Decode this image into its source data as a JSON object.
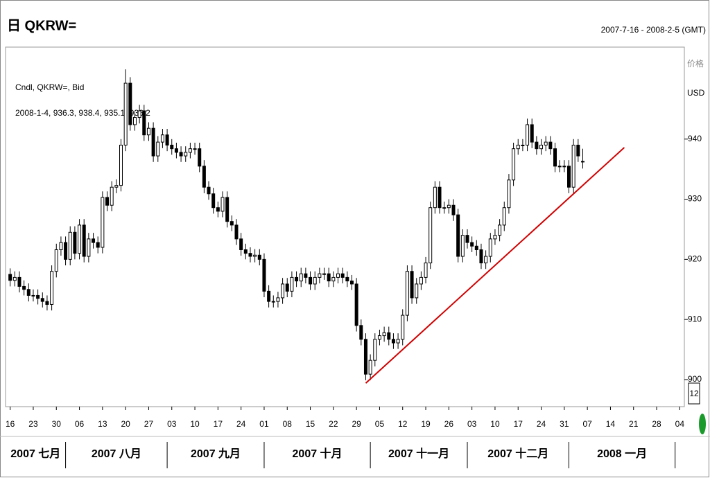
{
  "chart_data": {
    "type": "candlestick",
    "title": "日 QKRW=",
    "date_range": "2007-7-16 - 2008-2-5 (GMT)",
    "legend_name": "Cndl, QKRW=, Bid",
    "legend_info": "2008-1-4, 936.3, 938.4, 935.1, 936.2",
    "y_axis_title": "价格",
    "y_axis_unit": "USD",
    "price_marker": "12",
    "x": [
      "2007-07-16",
      "2007-07-17",
      "2007-07-18",
      "2007-07-19",
      "2007-07-20",
      "2007-07-23",
      "2007-07-24",
      "2007-07-25",
      "2007-07-26",
      "2007-07-27",
      "2007-07-30",
      "2007-07-31",
      "2007-08-01",
      "2007-08-02",
      "2007-08-03",
      "2007-08-06",
      "2007-08-07",
      "2007-08-08",
      "2007-08-09",
      "2007-08-10",
      "2007-08-13",
      "2007-08-14",
      "2007-08-15",
      "2007-08-16",
      "2007-08-17",
      "2007-08-20",
      "2007-08-21",
      "2007-08-22",
      "2007-08-23",
      "2007-08-24",
      "2007-08-27",
      "2007-08-28",
      "2007-08-29",
      "2007-08-30",
      "2007-08-31",
      "2007-09-03",
      "2007-09-04",
      "2007-09-05",
      "2007-09-06",
      "2007-09-07",
      "2007-09-10",
      "2007-09-11",
      "2007-09-12",
      "2007-09-13",
      "2007-09-14",
      "2007-09-17",
      "2007-09-18",
      "2007-09-19",
      "2007-09-20",
      "2007-09-21",
      "2007-09-24",
      "2007-09-25",
      "2007-09-26",
      "2007-09-27",
      "2007-09-28",
      "2007-10-01",
      "2007-10-02",
      "2007-10-03",
      "2007-10-04",
      "2007-10-05",
      "2007-10-08",
      "2007-10-09",
      "2007-10-10",
      "2007-10-11",
      "2007-10-12",
      "2007-10-15",
      "2007-10-16",
      "2007-10-17",
      "2007-10-18",
      "2007-10-19",
      "2007-10-22",
      "2007-10-23",
      "2007-10-24",
      "2007-10-25",
      "2007-10-26",
      "2007-10-29",
      "2007-10-30",
      "2007-10-31",
      "2007-11-01",
      "2007-11-02",
      "2007-11-05",
      "2007-11-06",
      "2007-11-07",
      "2007-11-08",
      "2007-11-09",
      "2007-11-12",
      "2007-11-13",
      "2007-11-14",
      "2007-11-15",
      "2007-11-16",
      "2007-11-19",
      "2007-11-20",
      "2007-11-21",
      "2007-11-22",
      "2007-11-23",
      "2007-11-26",
      "2007-11-27",
      "2007-11-28",
      "2007-11-29",
      "2007-11-30",
      "2007-12-03",
      "2007-12-04",
      "2007-12-05",
      "2007-12-06",
      "2007-12-07",
      "2007-12-10",
      "2007-12-11",
      "2007-12-12",
      "2007-12-13",
      "2007-12-14",
      "2007-12-17",
      "2007-12-18",
      "2007-12-19",
      "2007-12-20",
      "2007-12-21",
      "2007-12-24",
      "2007-12-25",
      "2007-12-26",
      "2007-12-27",
      "2007-12-28",
      "2007-12-31",
      "2008-01-01",
      "2008-01-02",
      "2008-01-03",
      "2008-01-04"
    ],
    "open": [
      917.5,
      916.5,
      917,
      915.5,
      915,
      914,
      914,
      913.5,
      913,
      912.5,
      918,
      921.6,
      922.8,
      920,
      924.5,
      921,
      925.7,
      920.5,
      923.4,
      922.8,
      922,
      930.3,
      929,
      932,
      932.3,
      939,
      949.3,
      942.4,
      943.6,
      944.7,
      940.7,
      941.8,
      937.2,
      939.5,
      940.7,
      939,
      938.4,
      937.8,
      937.2,
      937.8,
      938.4,
      938.4,
      935.5,
      932,
      930.9,
      928.6,
      928,
      930.3,
      926.3,
      925.7,
      923.4,
      921.6,
      921,
      920.5,
      920.7,
      920,
      914.7,
      913,
      913,
      913.6,
      915.9,
      914.7,
      917,
      916.4,
      917.6,
      917,
      915.9,
      917,
      917.6,
      917.6,
      916.4,
      917,
      917.6,
      917,
      916.4,
      915.9,
      909,
      906.7,
      900.9,
      903.2,
      906.7,
      907.3,
      907.8,
      906.7,
      906.1,
      906.7,
      910.7,
      918,
      913.6,
      915.9,
      917,
      919.4,
      928.6,
      932,
      928.6,
      928.6,
      929,
      927.4,
      920.5,
      924,
      922.8,
      922.2,
      921.6,
      919.4,
      920.5,
      923.4,
      924,
      925.7,
      928.6,
      933.2,
      938.4,
      939,
      939,
      942.4,
      939.5,
      938.4,
      939,
      939.5,
      938.4,
      935.5,
      935.5,
      935.5,
      932,
      939,
      936.3
    ],
    "high": [
      918.5,
      918,
      918,
      916.5,
      916,
      915,
      915,
      914.5,
      914,
      919,
      922.6,
      923.8,
      923.8,
      925.5,
      925.5,
      926.7,
      926.7,
      924.4,
      924.4,
      923.8,
      931.3,
      931.3,
      933,
      933.3,
      940,
      951.6,
      950.3,
      944.6,
      945.7,
      945.7,
      942.8,
      942.8,
      940.5,
      941.7,
      941.7,
      940,
      939.4,
      938.8,
      938.8,
      939.4,
      939.4,
      939.4,
      936.5,
      933,
      931.9,
      929.6,
      931.3,
      931.3,
      927.3,
      926.7,
      924.4,
      922.6,
      922,
      921.7,
      921.7,
      921,
      915.7,
      914,
      914.6,
      916.9,
      916.9,
      918,
      918,
      918.6,
      918.6,
      918,
      918,
      918.6,
      918.6,
      918.6,
      918,
      918.6,
      918.6,
      918,
      917.4,
      916.9,
      910,
      907.7,
      904.2,
      907.7,
      908.3,
      908.8,
      908.8,
      907.7,
      907.7,
      911.7,
      919,
      919,
      916.9,
      918,
      920.4,
      929.6,
      933,
      933,
      929.6,
      930,
      930,
      928.4,
      925,
      925,
      923.8,
      923.2,
      922.6,
      921.5,
      924.4,
      925,
      926.7,
      929.6,
      934.2,
      939.4,
      940,
      940,
      943.4,
      943.4,
      940.5,
      940,
      940.5,
      940.5,
      939.4,
      936.5,
      936.5,
      936.5,
      940,
      940,
      938.4
    ],
    "low": [
      915.5,
      915.5,
      914.5,
      914,
      913,
      913,
      912.5,
      912,
      911.5,
      911.5,
      917,
      920.6,
      919,
      919,
      920,
      920,
      919.5,
      919.5,
      921.8,
      921,
      921,
      928,
      928,
      931,
      931.3,
      938,
      941.4,
      941.4,
      942.6,
      939.7,
      939.7,
      936.2,
      936.2,
      938.5,
      938,
      937.4,
      936.8,
      936.2,
      936.2,
      936.8,
      937.4,
      934.5,
      931,
      929.9,
      927.6,
      927,
      927,
      925.3,
      924.7,
      922.4,
      920.6,
      920,
      919.5,
      919.5,
      919,
      913.7,
      912,
      912,
      912,
      912.6,
      913.7,
      913.7,
      915.4,
      915.4,
      916,
      914.9,
      914.9,
      916,
      916.6,
      915.4,
      915.4,
      916,
      916,
      915.4,
      914.9,
      908,
      905.7,
      899.9,
      899.9,
      902.2,
      905.7,
      906.3,
      905.7,
      905.1,
      905.1,
      905.7,
      909.7,
      912.6,
      912.6,
      914.9,
      916,
      918.4,
      927.6,
      927.6,
      927.6,
      927.6,
      926.4,
      919.5,
      919.5,
      921.8,
      921.2,
      920.6,
      918.4,
      918.4,
      919.5,
      922.4,
      923,
      924.7,
      927.6,
      932.2,
      937.4,
      938,
      938,
      938.5,
      937.4,
      937.4,
      938,
      937.4,
      934.5,
      934.5,
      934.5,
      931,
      931,
      936.2,
      935.1
    ],
    "close": [
      916.5,
      917,
      915.5,
      915,
      914,
      914,
      913.5,
      913,
      912.5,
      918,
      921.6,
      922.8,
      920,
      924.5,
      921,
      925.7,
      920.5,
      923.4,
      922.8,
      922,
      930.3,
      929,
      932,
      932.3,
      939,
      949.3,
      942.4,
      943.6,
      944.7,
      940.7,
      941.8,
      937.2,
      939.5,
      940.7,
      939,
      938.4,
      937.8,
      937.2,
      937.8,
      938.4,
      938.4,
      935.5,
      932,
      930.9,
      928.6,
      928,
      930.3,
      926.3,
      925.7,
      923.4,
      921.6,
      921,
      920.5,
      920.7,
      920,
      914.7,
      913,
      913,
      913.6,
      915.9,
      914.7,
      917,
      916.4,
      917.6,
      917,
      915.9,
      917,
      917.6,
      917.6,
      916.4,
      917,
      917.6,
      917,
      916.4,
      915.9,
      909,
      906.7,
      900.9,
      903.2,
      906.7,
      907.3,
      907.8,
      906.7,
      906.1,
      906.7,
      910.7,
      918,
      913.6,
      915.9,
      917,
      919.4,
      928.6,
      932,
      928.6,
      928.6,
      929,
      927.4,
      920.5,
      924,
      922.8,
      922.2,
      921.6,
      919.4,
      920.5,
      923.4,
      924,
      925.7,
      928.6,
      933.2,
      938.4,
      939,
      939,
      942.4,
      939.5,
      938.4,
      939,
      939.5,
      938.4,
      935.5,
      935.5,
      935.5,
      932,
      939,
      937.2,
      936.2
    ],
    "up_color": "#ffffff",
    "down_color": "#000000",
    "trendline": {
      "x": [
        "2007-10-31",
        "2008-01-17"
      ],
      "values": [
        899.4,
        938.6
      ],
      "color": "#d00000"
    },
    "xlim": [
      "2007-07-13",
      "2008-02-05"
    ],
    "xticks": [
      {
        "value": "2007-07-16",
        "label": "16"
      },
      {
        "value": "2007-07-23",
        "label": "23"
      },
      {
        "value": "2007-07-30",
        "label": "30"
      },
      {
        "value": "2007-08-06",
        "label": "06"
      },
      {
        "value": "2007-08-13",
        "label": "13"
      },
      {
        "value": "2007-08-20",
        "label": "20"
      },
      {
        "value": "2007-08-27",
        "label": "27"
      },
      {
        "value": "2007-09-03",
        "label": "03"
      },
      {
        "value": "2007-09-10",
        "label": "10"
      },
      {
        "value": "2007-09-17",
        "label": "17"
      },
      {
        "value": "2007-09-24",
        "label": "24"
      },
      {
        "value": "2007-10-01",
        "label": "01"
      },
      {
        "value": "2007-10-08",
        "label": "08"
      },
      {
        "value": "2007-10-15",
        "label": "15"
      },
      {
        "value": "2007-10-22",
        "label": "22"
      },
      {
        "value": "2007-10-29",
        "label": "29"
      },
      {
        "value": "2007-11-05",
        "label": "05"
      },
      {
        "value": "2007-11-12",
        "label": "12"
      },
      {
        "value": "2007-11-19",
        "label": "19"
      },
      {
        "value": "2007-11-26",
        "label": "26"
      },
      {
        "value": "2007-12-03",
        "label": "03"
      },
      {
        "value": "2007-12-10",
        "label": "10"
      },
      {
        "value": "2007-12-17",
        "label": "17"
      },
      {
        "value": "2007-12-24",
        "label": "24"
      },
      {
        "value": "2007-12-31",
        "label": "31"
      },
      {
        "value": "2008-01-07",
        "label": "07"
      },
      {
        "value": "2008-01-14",
        "label": "14"
      },
      {
        "value": "2008-01-21",
        "label": "21"
      },
      {
        "value": "2008-01-28",
        "label": "28"
      },
      {
        "value": "2008-02-04",
        "label": "04"
      }
    ],
    "months": [
      "2007 七月",
      "2007 八月",
      "2007 九月",
      "2007 十月",
      "2007 十一月",
      "2007 十二月",
      "2008 一月"
    ],
    "ylim": [
      895.5,
      955.3
    ],
    "yticks": [
      900,
      910,
      920,
      930,
      940
    ]
  }
}
